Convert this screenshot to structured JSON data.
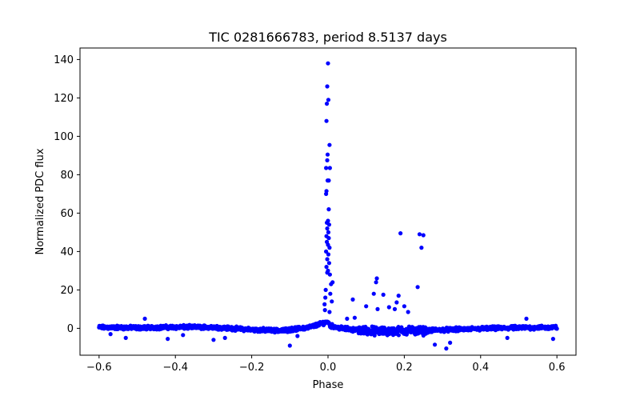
{
  "chart_data": {
    "type": "scatter",
    "title": "TIC 0281666783, period 8.5137 days",
    "xlabel": "Phase",
    "ylabel": "Normalized PDC flux",
    "xlim": [
      -0.65,
      0.65
    ],
    "ylim": [
      -14,
      146
    ],
    "xticks": [
      -0.6,
      -0.4,
      -0.2,
      0.0,
      0.2,
      0.4,
      0.6
    ],
    "xtick_labels": [
      "−0.6",
      "−0.4",
      "−0.2",
      "0.0",
      "0.2",
      "0.4",
      "0.6"
    ],
    "yticks": [
      0,
      20,
      40,
      60,
      80,
      100,
      120,
      140
    ],
    "ytick_labels": [
      "0",
      "20",
      "40",
      "60",
      "80",
      "100",
      "120",
      "140"
    ],
    "marker_color": "#0000ff",
    "grid": false,
    "baseline": [
      [
        -0.6,
        0.5
      ],
      [
        -0.5,
        0.3
      ],
      [
        -0.4,
        0.6
      ],
      [
        -0.3,
        0.6
      ],
      [
        -0.2,
        -0.7
      ],
      [
        -0.12,
        -1.2
      ],
      [
        -0.05,
        0.5
      ],
      [
        0.0,
        3.5
      ],
      [
        0.005,
        1.5
      ],
      [
        0.03,
        0.2
      ],
      [
        0.08,
        -1.0
      ],
      [
        0.15,
        -1.6
      ],
      [
        0.2,
        -1.2
      ],
      [
        0.25,
        -1.3
      ],
      [
        0.3,
        -0.8
      ],
      [
        0.4,
        -0.2
      ],
      [
        0.5,
        0.3
      ],
      [
        0.6,
        0.5
      ]
    ],
    "points": [
      [
        0.0,
        138.0
      ],
      [
        -0.002,
        126.0
      ],
      [
        -0.003,
        117.0
      ],
      [
        0.001,
        119.0
      ],
      [
        -0.004,
        108.0
      ],
      [
        0.004,
        95.5
      ],
      [
        -0.001,
        90.5
      ],
      [
        -0.002,
        87.5
      ],
      [
        -0.005,
        83.5
      ],
      [
        0.005,
        83.5
      ],
      [
        -0.001,
        77.0
      ],
      [
        0.002,
        77.0
      ],
      [
        -0.004,
        71.5
      ],
      [
        -0.005,
        70.0
      ],
      [
        0.002,
        62.0
      ],
      [
        0.0,
        56.0
      ],
      [
        -0.003,
        55.0
      ],
      [
        0.003,
        54.0
      ],
      [
        -0.002,
        52.0
      ],
      [
        0.001,
        50.0
      ],
      [
        -0.004,
        48.0
      ],
      [
        0.002,
        47.0
      ],
      [
        -0.003,
        45.0
      ],
      [
        0.0,
        43.5
      ],
      [
        0.004,
        42.0
      ],
      [
        -0.005,
        40.0
      ],
      [
        0.001,
        38.5
      ],
      [
        -0.002,
        36.0
      ],
      [
        0.003,
        34.0
      ],
      [
        -0.004,
        32.0
      ],
      [
        0.0,
        30.0
      ],
      [
        -0.002,
        29.0
      ],
      [
        0.005,
        28.0
      ],
      [
        0.008,
        23.0
      ],
      [
        0.006,
        18.0
      ],
      [
        -0.006,
        20.0
      ],
      [
        -0.007,
        16.0
      ],
      [
        -0.009,
        12.5
      ],
      [
        0.01,
        14.0
      ],
      [
        -0.008,
        9.5
      ],
      [
        0.004,
        8.5
      ],
      [
        0.012,
        24.0
      ],
      [
        0.128,
        26.0
      ],
      [
        0.126,
        24.0
      ],
      [
        0.12,
        18.0
      ],
      [
        0.1,
        11.5
      ],
      [
        0.13,
        10.0
      ],
      [
        0.145,
        17.5
      ],
      [
        0.16,
        11.0
      ],
      [
        0.18,
        13.5
      ],
      [
        0.175,
        10.0
      ],
      [
        0.185,
        17.0
      ],
      [
        0.19,
        49.5
      ],
      [
        0.2,
        11.5
      ],
      [
        0.21,
        8.5
      ],
      [
        0.235,
        21.5
      ],
      [
        0.24,
        49.0
      ],
      [
        0.25,
        48.5
      ],
      [
        0.245,
        42.0
      ],
      [
        0.065,
        15.0
      ],
      [
        0.07,
        5.5
      ],
      [
        -0.48,
        5.0
      ],
      [
        -0.42,
        -5.5
      ],
      [
        -0.3,
        -6.0
      ],
      [
        -0.27,
        -5.0
      ],
      [
        -0.1,
        -9.0
      ],
      [
        -0.53,
        -5.0
      ],
      [
        -0.38,
        -3.5
      ],
      [
        0.28,
        -8.5
      ],
      [
        0.31,
        -10.5
      ],
      [
        0.32,
        -7.5
      ],
      [
        0.47,
        -5.0
      ],
      [
        0.52,
        5.0
      ],
      [
        0.59,
        -5.5
      ],
      [
        -0.57,
        -3.0
      ],
      [
        -0.08,
        -4.0
      ],
      [
        0.05,
        5.0
      ]
    ]
  }
}
